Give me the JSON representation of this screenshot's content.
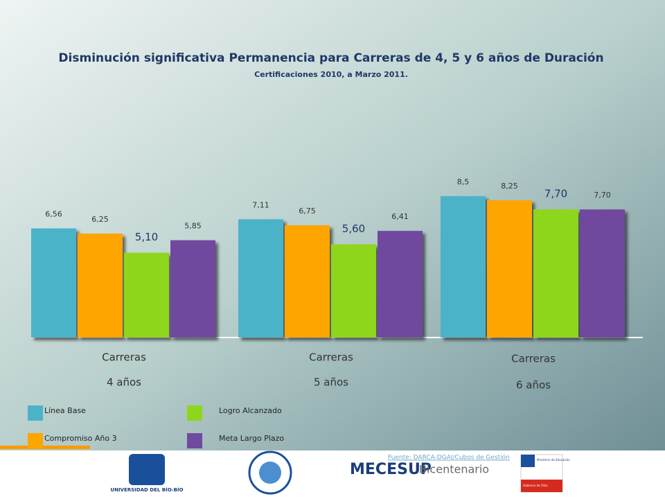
{
  "chart_data": {
    "type": "bar",
    "title": "Disminución significativa Permanencia para Carreras de 4, 5 y 6 años de Duración",
    "subtitle": "Certificaciones 2010, a Marzo 2011.",
    "categories": [
      [
        "Carreras",
        "4 años"
      ],
      [
        "Carreras",
        "5 años"
      ],
      [
        "Carreras",
        "6 años"
      ]
    ],
    "series": [
      {
        "name": "Línea Base",
        "color": "#4bb3c8",
        "values": [
          6.56,
          7.11,
          8.5
        ],
        "value_labels": [
          "6,56",
          "7,11",
          "8,5"
        ]
      },
      {
        "name": "Compromiso Año 3",
        "color": "#ffa500",
        "values": [
          6.25,
          6.75,
          8.25
        ],
        "value_labels": [
          "6,25",
          "6,75",
          "8,25"
        ]
      },
      {
        "name": "Logro Alcanzado",
        "color": "#8ed61e",
        "values": [
          5.1,
          5.6,
          7.7
        ],
        "value_labels": [
          "5,10",
          "5,60",
          "7,70"
        ]
      },
      {
        "name": "Meta Largo Plazo",
        "color": "#6f4a9e",
        "values": [
          5.85,
          6.41,
          7.7
        ],
        "value_labels": [
          "5,85",
          "6,41",
          "7,70"
        ]
      }
    ]
  },
  "footer": {
    "source": "Fuente: DARCA-DGAI/Cubos de Gestión",
    "logos": [
      "UNIVERSIDAD DEL BÍO-BÍO",
      "MECESUP",
      "Bicentenario",
      "Ministerio de Educación",
      "Gobierno de Chile"
    ]
  }
}
